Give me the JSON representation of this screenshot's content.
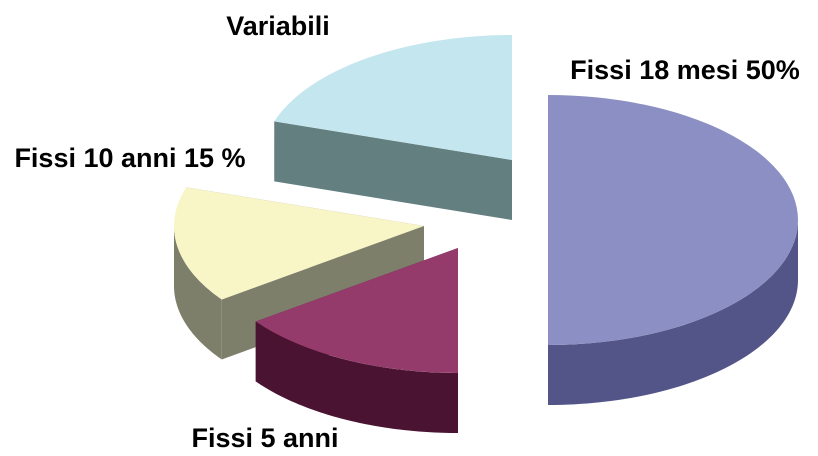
{
  "chart_data": {
    "type": "pie3d",
    "categories": [
      "Fissi 18 mesi 50%",
      "Fissi 5 anni",
      "Fissi 10 anni 15 %",
      "Variabili"
    ],
    "values": [
      50,
      15,
      15,
      20
    ],
    "colors": [
      "#8b8fc4",
      "#943b6c",
      "#f8f5c6",
      "#c4e6ef"
    ],
    "side_colors": [
      "#535588",
      "#4a1331",
      "#7e7f6b",
      "#637f80"
    ]
  }
}
